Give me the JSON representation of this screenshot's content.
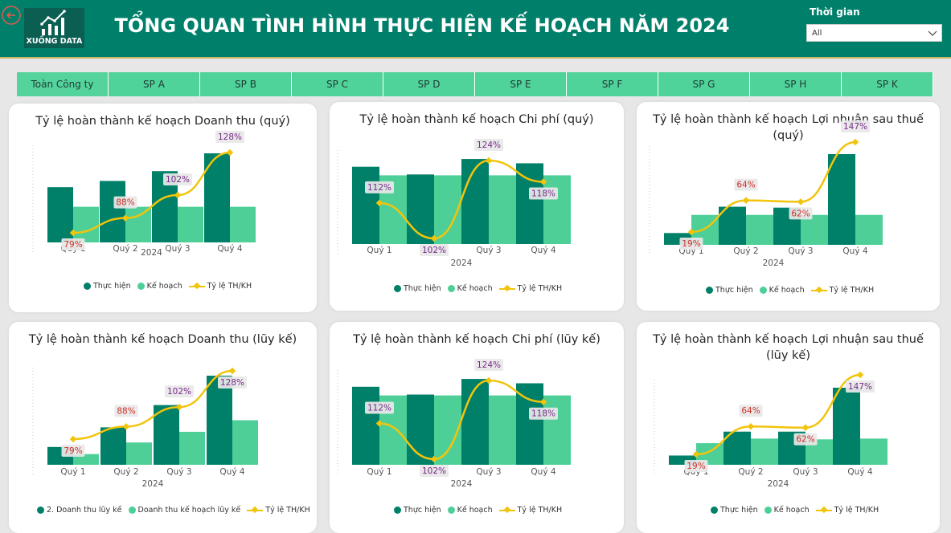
{
  "header": {
    "title": "TỔNG QUAN TÌNH HÌNH THỰC HIỆN KẾ HOẠCH NĂM 2024",
    "logo_text": "XUỐNG DATA",
    "filter_label": "Thời gian",
    "filter_value": "All"
  },
  "colors": {
    "header": "#00806b",
    "actual": "#008068",
    "plan": "#4ecf98",
    "line": "#f2c40c"
  },
  "tabs": [
    "Toàn Công ty",
    "SP A",
    "SP B",
    "SP C",
    "SP D",
    "SP E",
    "SP F",
    "SP G",
    "SP H",
    "SP K"
  ],
  "charts": [
    {
      "title": "Tỷ lệ hoàn thành kế hoạch Doanh thu (quý)",
      "categories": [
        "Quý 1",
        "Quý 2",
        "Quý 3",
        "Quý 4"
      ],
      "xlabel": "2024",
      "actual": [
        0.62,
        0.69,
        0.8,
        1.0
      ],
      "plan": [
        0.4,
        0.4,
        0.4,
        0.4
      ],
      "ratio": [
        79,
        88,
        102,
        128
      ],
      "ratio_labels": [
        "79%",
        "88%",
        "102%",
        "128%"
      ],
      "legend": [
        "Thực hiện",
        "Kế hoạch",
        "Tỷ lệ TH/KH"
      ]
    },
    {
      "title": "Tỷ lệ hoàn thành kế hoạch Chi phí (quý)",
      "categories": [
        "Quý 1",
        "Quý 2",
        "Quý 3",
        "Quý 4"
      ],
      "xlabel": "2024",
      "actual": [
        0.9,
        0.81,
        0.99,
        0.94
      ],
      "plan": [
        0.8,
        0.8,
        0.8,
        0.8
      ],
      "ratio": [
        112,
        102,
        124,
        118
      ],
      "ratio_labels": [
        "112%",
        "102%",
        "124%",
        "118%"
      ],
      "legend": [
        "Thực hiện",
        "Kế hoạch",
        "Tỷ lệ TH/KH"
      ]
    },
    {
      "title": "Tỷ lệ hoàn thành kế hoạch Lợi nhuận sau thuế (quý)",
      "categories": [
        "Quý 1",
        "Quý 2",
        "Quý 3",
        "Quý 4"
      ],
      "xlabel": "2024",
      "actual": [
        0.13,
        0.42,
        0.41,
        1.0
      ],
      "plan": [
        0.33,
        0.33,
        0.33,
        0.33
      ],
      "ratio": [
        19,
        64,
        62,
        147
      ],
      "ratio_labels": [
        "19%",
        "64%",
        "62%",
        "147%"
      ],
      "legend": [
        "Thực hiện",
        "Kế hoạch",
        "Tỷ lệ TH/KH"
      ]
    },
    {
      "title": "Tỷ lệ hoàn thành kế hoạch Doanh thu (lũy kế)",
      "categories": [
        "Quý 1",
        "Quý 2",
        "Quý 3",
        "Quý 4"
      ],
      "xlabel": "2024",
      "actual": [
        0.2,
        0.42,
        0.67,
        1.0
      ],
      "plan": [
        0.12,
        0.25,
        0.37,
        0.5
      ],
      "ratio": [
        79,
        88,
        102,
        128
      ],
      "ratio_labels": [
        "79%",
        "88%",
        "102%",
        "128%"
      ],
      "legend": [
        "2. Doanh thu lũy kế",
        "Doanh thu kế hoạch lũy kế",
        "Tỷ lệ TH/KH"
      ]
    },
    {
      "title": "Tỷ lệ hoàn thành kế hoạch Chi phí (lũy kế)",
      "categories": [
        "Quý 1",
        "Quý 2",
        "Quý 3",
        "Quý 4"
      ],
      "xlabel": "2024",
      "actual": [
        0.9,
        0.81,
        0.99,
        0.94
      ],
      "plan": [
        0.8,
        0.8,
        0.8,
        0.8
      ],
      "ratio": [
        112,
        102,
        124,
        118
      ],
      "ratio_labels": [
        "112%",
        "102%",
        "124%",
        "118%"
      ],
      "legend": [
        "Thực hiện",
        "Kế hoạch",
        "Tỷ lệ TH/KH"
      ]
    },
    {
      "title": "Tỷ lệ hoàn thành kế hoạch Lợi nhuận sau thuế (lũy kế)",
      "categories": [
        "Quý 1",
        "Quý 2",
        "Quý 3",
        "Quý 4"
      ],
      "xlabel": "2024",
      "actual": [
        0.12,
        0.43,
        0.43,
        1.0
      ],
      "plan": [
        0.28,
        0.34,
        0.33,
        0.34
      ],
      "ratio": [
        19,
        64,
        62,
        147
      ],
      "ratio_labels": [
        "19%",
        "64%",
        "62%",
        "147%"
      ],
      "legend": [
        "Thực hiện",
        "Kế hoạch",
        "Tỷ lệ TH/KH"
      ]
    }
  ],
  "chart_data": [
    {
      "type": "bar",
      "title": "Tỷ lệ hoàn thành kế hoạch Doanh thu (quý)",
      "categories": [
        "Quý 1",
        "Quý 2",
        "Quý 3",
        "Quý 4"
      ],
      "xlabel": "2024",
      "series": [
        {
          "name": "Thực hiện",
          "values": [
            0.62,
            0.69,
            0.8,
            1.0
          ]
        },
        {
          "name": "Kế hoạch",
          "values": [
            0.4,
            0.4,
            0.4,
            0.4
          ]
        },
        {
          "name": "Tỷ lệ TH/KH",
          "values": [
            79,
            88,
            102,
            128
          ]
        }
      ]
    },
    {
      "type": "bar",
      "title": "Tỷ lệ hoàn thành kế hoạch Chi phí (quý)",
      "categories": [
        "Quý 1",
        "Quý 2",
        "Quý 3",
        "Quý 4"
      ],
      "xlabel": "2024",
      "series": [
        {
          "name": "Thực hiện",
          "values": [
            0.9,
            0.81,
            0.99,
            0.94
          ]
        },
        {
          "name": "Kế hoạch",
          "values": [
            0.8,
            0.8,
            0.8,
            0.8
          ]
        },
        {
          "name": "Tỷ lệ TH/KH",
          "values": [
            112,
            102,
            124,
            118
          ]
        }
      ]
    },
    {
      "type": "bar",
      "title": "Tỷ lệ hoàn thành kế hoạch Lợi nhuận sau thuế (quý)",
      "categories": [
        "Quý 1",
        "Quý 2",
        "Quý 3",
        "Quý 4"
      ],
      "xlabel": "2024",
      "series": [
        {
          "name": "Thực hiện",
          "values": [
            0.13,
            0.42,
            0.41,
            1.0
          ]
        },
        {
          "name": "Kế hoạch",
          "values": [
            0.33,
            0.33,
            0.33,
            0.33
          ]
        },
        {
          "name": "Tỷ lệ TH/KH",
          "values": [
            19,
            64,
            62,
            147
          ]
        }
      ]
    },
    {
      "type": "bar",
      "title": "Tỷ lệ hoàn thành kế hoạch Doanh thu (lũy kế)",
      "categories": [
        "Quý 1",
        "Quý 2",
        "Quý 3",
        "Quý 4"
      ],
      "xlabel": "2024",
      "series": [
        {
          "name": "2. Doanh thu lũy kế",
          "values": [
            0.2,
            0.42,
            0.67,
            1.0
          ]
        },
        {
          "name": "Doanh thu kế hoạch lũy kế",
          "values": [
            0.12,
            0.25,
            0.37,
            0.5
          ]
        },
        {
          "name": "Tỷ lệ TH/KH",
          "values": [
            79,
            88,
            102,
            128
          ]
        }
      ]
    },
    {
      "type": "bar",
      "title": "Tỷ lệ hoàn thành kế hoạch Chi phí (lũy kế)",
      "categories": [
        "Quý 1",
        "Quý 2",
        "Quý 3",
        "Quý 4"
      ],
      "xlabel": "2024",
      "series": [
        {
          "name": "Thực hiện",
          "values": [
            0.9,
            0.81,
            0.99,
            0.94
          ]
        },
        {
          "name": "Kế hoạch",
          "values": [
            0.8,
            0.8,
            0.8,
            0.8
          ]
        },
        {
          "name": "Tỷ lệ TH/KH",
          "values": [
            112,
            102,
            124,
            118
          ]
        }
      ]
    },
    {
      "type": "bar",
      "title": "Tỷ lệ hoàn thành kế hoạch Lợi nhuận sau thuế (lũy kế)",
      "categories": [
        "Quý 1",
        "Quý 2",
        "Quý 3",
        "Quý 4"
      ],
      "xlabel": "2024",
      "series": [
        {
          "name": "Thực hiện",
          "values": [
            0.12,
            0.43,
            0.43,
            1.0
          ]
        },
        {
          "name": "Kế hoạch",
          "values": [
            0.28,
            0.34,
            0.33,
            0.34
          ]
        },
        {
          "name": "Tỷ lệ TH/KH",
          "values": [
            19,
            64,
            62,
            147
          ]
        }
      ]
    }
  ]
}
